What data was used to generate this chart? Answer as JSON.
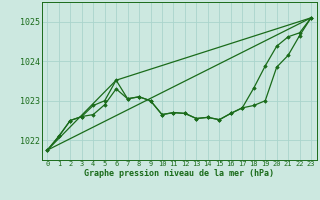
{
  "background_color": "#cce8e0",
  "grid_color": "#aad4cc",
  "line_color": "#1a6b1a",
  "marker_color": "#1a6b1a",
  "xlabel": "Graphe pression niveau de la mer (hPa)",
  "ylim": [
    1021.5,
    1025.5
  ],
  "xlim": [
    -0.5,
    23.5
  ],
  "yticks": [
    1022,
    1023,
    1024,
    1025
  ],
  "xticks": [
    0,
    1,
    2,
    3,
    4,
    5,
    6,
    7,
    8,
    9,
    10,
    11,
    12,
    13,
    14,
    15,
    16,
    17,
    18,
    19,
    20,
    21,
    22,
    23
  ],
  "line1": [
    1021.75,
    1022.1,
    1022.5,
    1022.6,
    1022.65,
    1022.9,
    1023.3,
    1023.05,
    1023.1,
    1023.0,
    1022.65,
    1022.7,
    1022.68,
    1022.55,
    1022.58,
    1022.52,
    1022.68,
    1022.82,
    1022.88,
    1023.0,
    1023.85,
    1024.15,
    1024.65,
    1025.1
  ],
  "line2": [
    1021.75,
    1022.1,
    1022.5,
    1022.6,
    1022.88,
    1023.0,
    1023.52,
    1023.05,
    1023.1,
    1023.0,
    1022.65,
    1022.7,
    1022.68,
    1022.55,
    1022.58,
    1022.52,
    1022.68,
    1022.82,
    1023.32,
    1023.88,
    1024.38,
    1024.62,
    1024.72,
    1025.1
  ],
  "line3_x": [
    0,
    23
  ],
  "line3_y": [
    1021.75,
    1025.1
  ],
  "line4_x": [
    0,
    6,
    23
  ],
  "line4_y": [
    1021.75,
    1023.52,
    1025.1
  ]
}
